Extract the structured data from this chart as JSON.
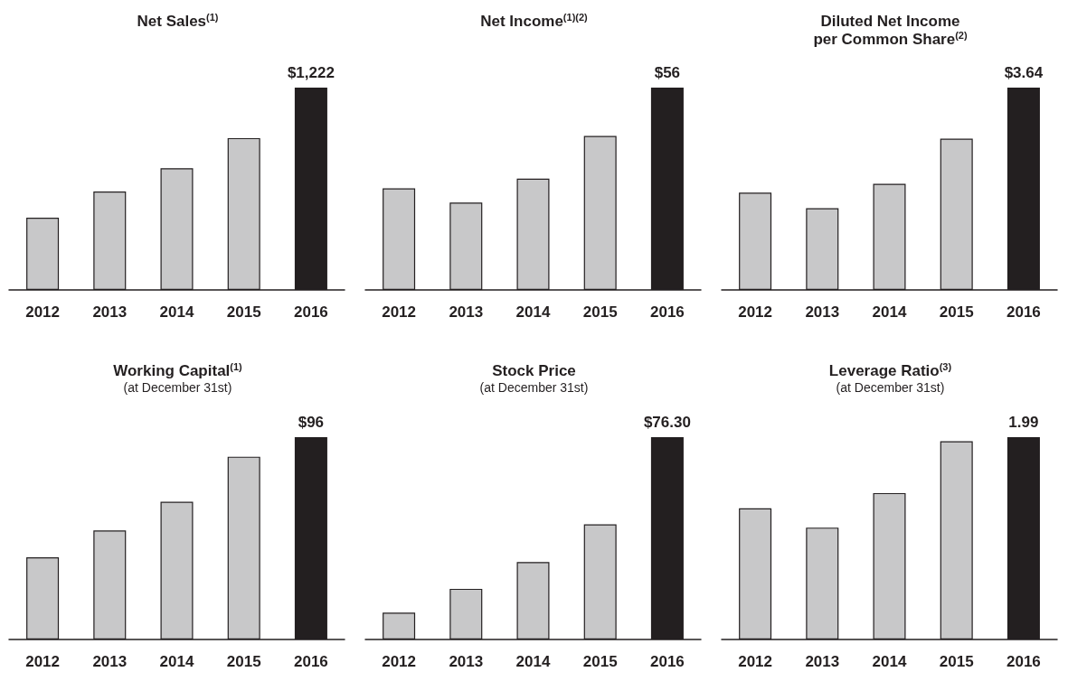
{
  "chart_data": [
    {
      "type": "bar",
      "title": "Net Sales$^{(1)}$",
      "categories": [
        "2012",
        "2013",
        "2014",
        "2015",
        "2016"
      ],
      "values": [
        436,
        594,
        735,
        917,
        1222
      ],
      "colors": [
        "#c8c8c9",
        "#c8c8c9",
        "#c8c8c9",
        "#c8c8c9",
        "#231f20"
      ],
      "value_labels": [
        null,
        null,
        null,
        null,
        "$1,222"
      ]
    },
    {
      "type": "bar",
      "title": "Net Income$^{(1)(2)}$",
      "categories": [
        "2012",
        "2013",
        "2014",
        "2015",
        "2016"
      ],
      "values": [
        28.1,
        24.2,
        30.8,
        42.6,
        56
      ],
      "colors": [
        "#c8c8c9",
        "#c8c8c9",
        "#c8c8c9",
        "#c8c8c9",
        "#231f20"
      ],
      "value_labels": [
        null,
        null,
        null,
        null,
        "$56"
      ]
    },
    {
      "type": "bar",
      "title": "Diluted Net Income\nper Common Share$^{(2)}$",
      "categories": [
        "2012",
        "2013",
        "2014",
        "2015",
        "2016"
      ],
      "values": [
        1.75,
        1.47,
        1.91,
        2.72,
        3.64
      ],
      "colors": [
        "#c8c8c9",
        "#c8c8c9",
        "#c8c8c9",
        "#c8c8c9",
        "#231f20"
      ],
      "value_labels": [
        null,
        null,
        null,
        null,
        "$3.64"
      ]
    },
    {
      "type": "bar",
      "title": "Working Capital$^{(1)}$",
      "subtitle": "(at December 31st)",
      "categories": [
        "2012",
        "2013",
        "2014",
        "2015",
        "2016"
      ],
      "values": [
        39,
        51.7,
        65.3,
        86.7,
        96
      ],
      "colors": [
        "#c8c8c9",
        "#c8c8c9",
        "#c8c8c9",
        "#c8c8c9",
        "#231f20"
      ],
      "value_labels": [
        null,
        null,
        null,
        null,
        "$96"
      ]
    },
    {
      "type": "bar",
      "title": "Stock Price",
      "subtitle": "(at December 31st)",
      "categories": [
        "2012",
        "2013",
        "2014",
        "2015",
        "2016"
      ],
      "values": [
        10.1,
        19.1,
        29.2,
        43.4,
        76.3
      ],
      "colors": [
        "#c8c8c9",
        "#c8c8c9",
        "#c8c8c9",
        "#c8c8c9",
        "#231f20"
      ],
      "value_labels": [
        null,
        null,
        null,
        null,
        "$76.30"
      ]
    },
    {
      "type": "bar",
      "title": "Leverage Ratio$^{(3)}$",
      "subtitle": "(at December 31st)",
      "categories": [
        "2012",
        "2013",
        "2014",
        "2015",
        "2016"
      ],
      "values": [
        1.29,
        1.1,
        1.44,
        1.95,
        1.99
      ],
      "colors": [
        "#c8c8c9",
        "#c8c8c9",
        "#c8c8c9",
        "#c8c8c9",
        "#231f20"
      ],
      "value_labels": [
        null,
        null,
        null,
        null,
        "1.99"
      ]
    }
  ]
}
